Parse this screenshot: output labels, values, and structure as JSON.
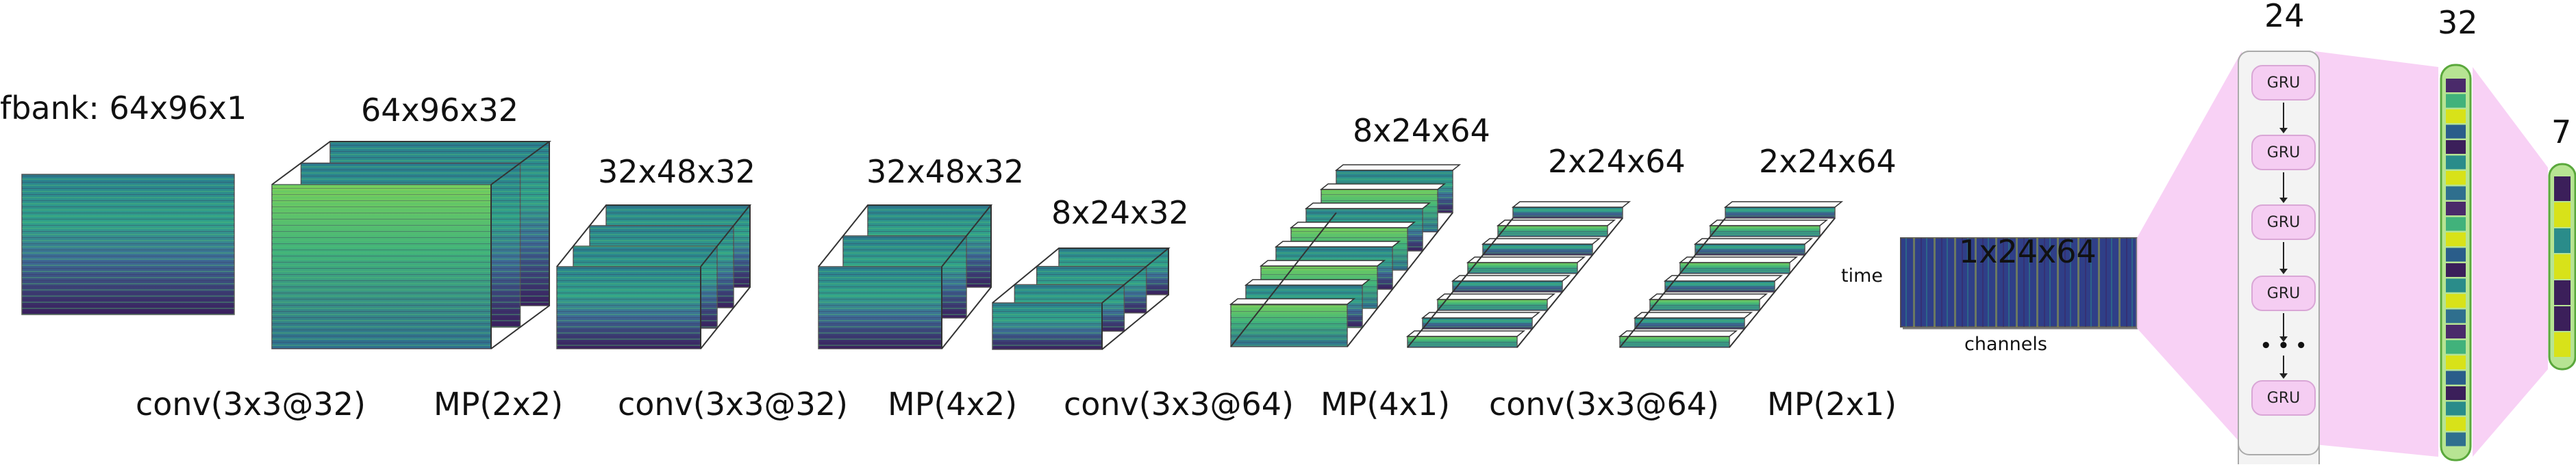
{
  "labels": {
    "input": "fbank: 64x96x1",
    "l1": "64x96x32",
    "l2": "32x48x32",
    "l3": "32x48x32",
    "l4": "8x24x32",
    "l5": "8x24x64",
    "l6": "2x24x64",
    "l7": "2x24x64",
    "l8": "1x24x64",
    "gru_count": "24",
    "dense_count": "32",
    "output_count": "7",
    "time": "time",
    "channels": "channels"
  },
  "ops": {
    "op1": "conv(3x3@32)",
    "op2": "MP(2x2)",
    "op3": "conv(3x3@32)",
    "op4": "MP(4x2)",
    "op5": "conv(3x3@64)",
    "op6": "MP(4x1)",
    "op7": "conv(3x3@64)",
    "op8": "MP(2x1)"
  },
  "gru": {
    "label": "GRU",
    "ellipsis": "• • •"
  },
  "colors": {
    "viridis_dark": "#3b1f5a",
    "viridis_mid": "#2a8c8a",
    "viridis_bright": "#d8e219",
    "gru_fill": "#f5cdf2",
    "funnel_fill": "#f7c9f3",
    "bar_border": "#5aa83c",
    "bar_fill": "#b7e493"
  }
}
